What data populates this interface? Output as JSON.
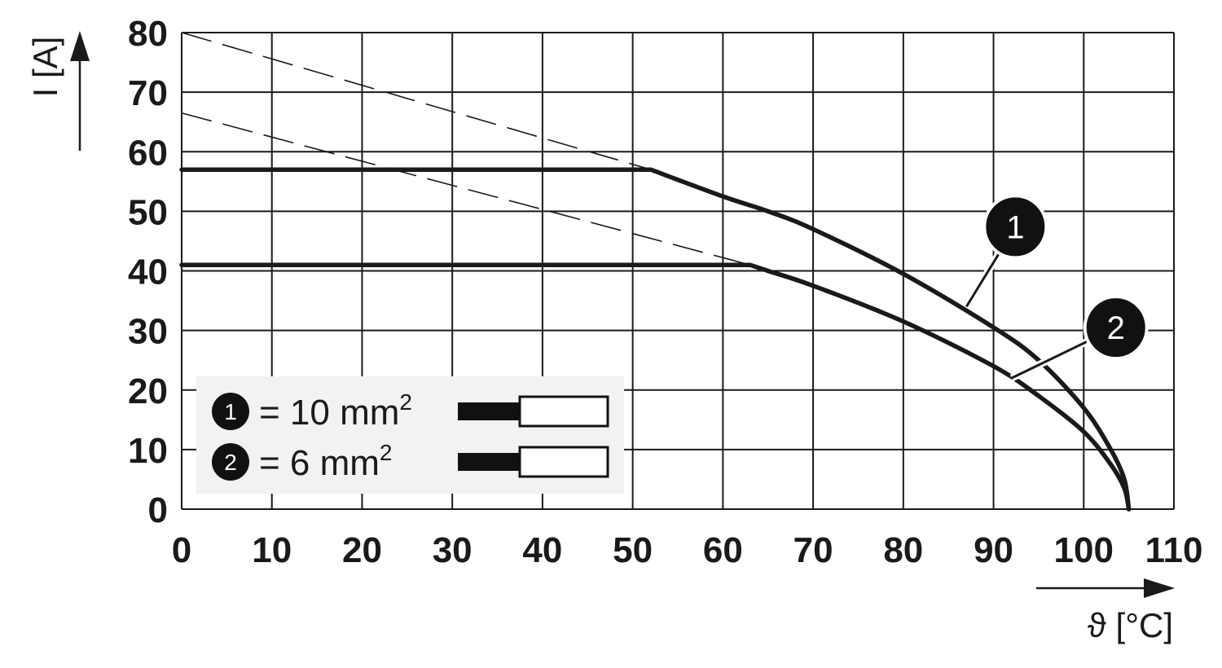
{
  "chart_data": {
    "type": "line",
    "x_axis": {
      "label": "ϑ [°C]",
      "range": [
        0,
        110
      ],
      "ticks": [
        "0",
        "10",
        "20",
        "30",
        "40",
        "50",
        "60",
        "70",
        "80",
        "90",
        "100",
        "110"
      ],
      "tick_values": [
        0,
        10,
        20,
        30,
        40,
        50,
        60,
        70,
        80,
        90,
        100,
        110
      ]
    },
    "y_axis": {
      "label": "I [A]",
      "range": [
        0,
        80
      ],
      "ticks": [
        "0",
        "10",
        "20",
        "30",
        "40",
        "50",
        "60",
        "70",
        "80"
      ],
      "tick_values": [
        0,
        10,
        20,
        30,
        40,
        50,
        60,
        70,
        80
      ]
    },
    "grid": true,
    "legend_placement": "bottom-left",
    "series": [
      {
        "marker": "1",
        "style": "solid",
        "x": [
          0,
          52,
          60,
          65,
          70,
          80,
          90,
          95,
          100,
          103,
          104.5,
          105
        ],
        "y": [
          57,
          57,
          52.5,
          50,
          47,
          39.5,
          30.5,
          25,
          17,
          10,
          5,
          0
        ]
      },
      {
        "marker": "2",
        "style": "solid",
        "x": [
          0,
          63,
          65,
          70,
          80,
          90,
          95,
          100,
          103,
          104.5,
          105
        ],
        "y": [
          41,
          41,
          40,
          37.5,
          31.5,
          24,
          19,
          13,
          7.5,
          3.5,
          0
        ]
      }
    ],
    "extrapolation_lines": [
      {
        "for_marker": "1",
        "x": [
          0,
          52
        ],
        "y": [
          80,
          57
        ]
      },
      {
        "for_marker": "2",
        "x": [
          0,
          63
        ],
        "y": [
          66.5,
          41
        ]
      }
    ],
    "badges": [
      {
        "text": "1",
        "pointer_x": 87,
        "pointer_y": 34
      },
      {
        "text": "2",
        "pointer_x": 92,
        "pointer_y": 22
      }
    ]
  },
  "legend": {
    "items": [
      {
        "marker": "1",
        "prefix": "= 10 mm",
        "sup": "2"
      },
      {
        "marker": "2",
        "prefix": "= 6 mm",
        "sup": "2"
      }
    ]
  },
  "colors": {
    "line": "#1a1a1a",
    "grid": "#1a1a1a",
    "legend_bg": "#f2f2f2"
  }
}
